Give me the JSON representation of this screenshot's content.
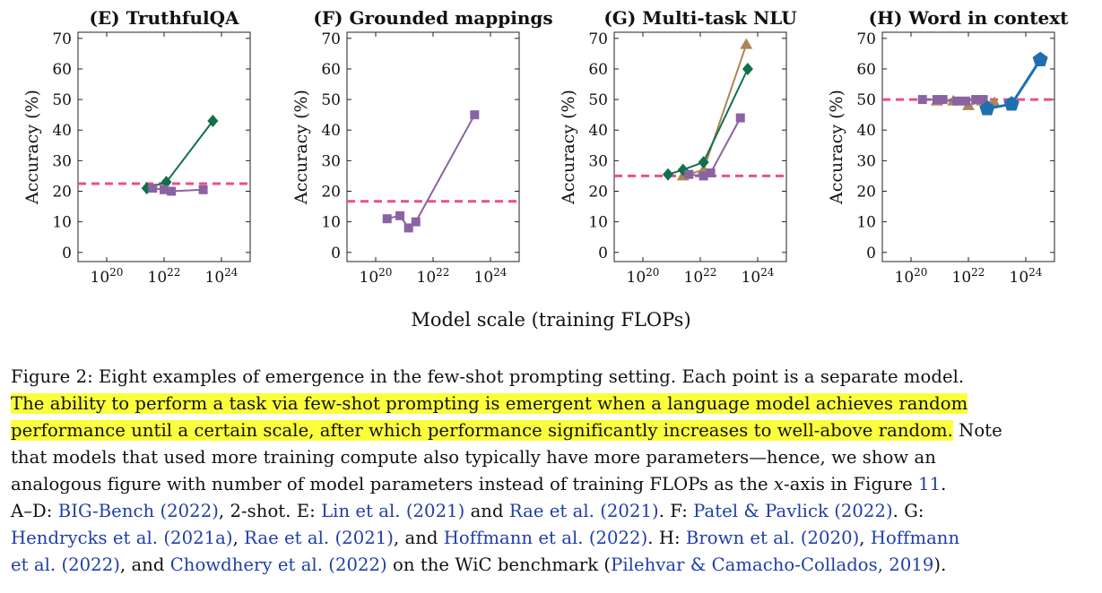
{
  "figure": {
    "xlabel_shared": "Model scale (training FLOPs)",
    "random_line_color": "#e8508c",
    "series_colors": {
      "green": "#11704a",
      "purple": "#8a63a3",
      "brown": "#ad8559",
      "blue": "#1f6fb0"
    }
  },
  "chart_data": [
    {
      "type": "scatter",
      "title": "(E) TruthfulQA",
      "ylabel": "Accuracy (%)",
      "x_scale": "log",
      "xlim": [
        1e+19,
        1e+25
      ],
      "ylim": [
        -3,
        72
      ],
      "yticks": [
        0,
        10,
        20,
        30,
        40,
        50,
        60,
        70
      ],
      "xticks": [
        1e+20,
        1e+22,
        1e+24
      ],
      "xtick_labels": [
        "10^20",
        "10^22",
        "10^24"
      ],
      "random_baseline": 22.5,
      "series": [
        {
          "color": "#11704a",
          "marker": "diamond",
          "x": [
            2.5e+21,
            1.2e+22,
            5e+23
          ],
          "y": [
            21,
            23,
            43
          ]
        },
        {
          "color": "#8a63a3",
          "marker": "square",
          "x": [
            4e+21,
            1e+22,
            1.8e+22,
            2.3e+23
          ],
          "y": [
            21,
            20.5,
            20,
            20.5
          ]
        }
      ]
    },
    {
      "type": "scatter",
      "title": "(F) Grounded mappings",
      "ylabel": "Accuracy (%)",
      "x_scale": "log",
      "xlim": [
        1e+19,
        1e+25
      ],
      "ylim": [
        -3,
        72
      ],
      "yticks": [
        0,
        10,
        20,
        30,
        40,
        50,
        60,
        70
      ],
      "xticks": [
        1e+20,
        1e+22,
        1e+24
      ],
      "xtick_labels": [
        "10^20",
        "10^22",
        "10^24"
      ],
      "random_baseline": 16.7,
      "series": [
        {
          "color": "#8a63a3",
          "marker": "square",
          "x": [
            2.5e+20,
            7e+20,
            1.4e+21,
            2.5e+21,
            2.8e+23
          ],
          "y": [
            11,
            12,
            8,
            10,
            45
          ]
        }
      ]
    },
    {
      "type": "scatter",
      "title": "(G) Multi-task NLU",
      "ylabel": "Accuracy (%)",
      "x_scale": "log",
      "xlim": [
        1e+19,
        1e+25
      ],
      "ylim": [
        -3,
        72
      ],
      "yticks": [
        0,
        10,
        20,
        30,
        40,
        50,
        60,
        70
      ],
      "xticks": [
        1e+20,
        1e+22,
        1e+24
      ],
      "xtick_labels": [
        "10^20",
        "10^22",
        "10^24"
      ],
      "random_baseline": 25,
      "series": [
        {
          "color": "#ad8559",
          "marker": "triangle",
          "x": [
            2.5e+21,
            1.3e+22,
            4e+23
          ],
          "y": [
            25,
            27,
            68
          ]
        },
        {
          "color": "#11704a",
          "marker": "diamond",
          "x": [
            7.5e+20,
            2.5e+21,
            1.3e+22,
            4.5e+23
          ],
          "y": [
            25.5,
            27,
            29.5,
            60
          ]
        },
        {
          "color": "#8a63a3",
          "marker": "square",
          "x": [
            4e+21,
            1.3e+22,
            2.3e+22,
            2.5e+23
          ],
          "y": [
            25.5,
            25,
            26,
            44
          ]
        }
      ]
    },
    {
      "type": "scatter",
      "title": "(H) Word in context",
      "ylabel": "Accuracy (%)",
      "x_scale": "log",
      "xlim": [
        1e+19,
        1e+25
      ],
      "ylim": [
        -3,
        72
      ],
      "yticks": [
        0,
        10,
        20,
        30,
        40,
        50,
        60,
        70
      ],
      "xticks": [
        1e+20,
        1e+22,
        1e+24
      ],
      "xtick_labels": [
        "10^20",
        "10^22",
        "10^24"
      ],
      "random_baseline": 50,
      "series": [
        {
          "color": "#ad8559",
          "marker": "triangle",
          "x": [
            8e+20,
            3e+21,
            1e+22,
            3e+22,
            8e+22
          ],
          "y": [
            49.5,
            49.5,
            48,
            49.5,
            49
          ]
        },
        {
          "color": "#8a63a3",
          "marker": "square",
          "x": [
            2.5e+20,
            8e+20,
            1.3e+21,
            4e+21,
            8e+21,
            1.8e+22,
            3.3e+22
          ],
          "y": [
            50,
            50,
            50,
            49.5,
            49.5,
            50,
            50
          ]
        },
        {
          "color": "#1f6fb0",
          "marker": "pentagon",
          "x": [
            4.5e+22,
            3.2e+23,
            3.2e+24
          ],
          "y": [
            47,
            48.5,
            63
          ]
        }
      ]
    }
  ],
  "caption": {
    "l1": "Figure 2: Eight examples of emergence in the few-shot prompting setting. Each point is a separate model.",
    "l2": "The ability to perform a task via few-shot prompting is emergent when a language model achieves random",
    "l3_hl": "performance until a certain scale, after which performance significantly increases to well-above random.",
    "l3_rest": " Note",
    "l4": "that models that used more training compute also typically have more parameters—hence, we show an",
    "l5_a": "analogous figure with number of model parameters instead of training FLOPs as the ",
    "l5_x": "x",
    "l5_b": "-axis in Figure ",
    "l5_ref": "11",
    "l5_c": ".",
    "l6_a": "A–D: ",
    "l6_ref1": "BIG-Bench (2022)",
    "l6_b": ", 2-shot. E: ",
    "l6_ref2": "Lin et al. (2021)",
    "l6_c": " and ",
    "l6_ref3": "Rae et al. (2021)",
    "l6_d": ". F: ",
    "l6_ref4": "Patel & Pavlick (2022)",
    "l6_e": ". G:",
    "l7_ref1": "Hendrycks et al. (2021a)",
    "l7_a": ", ",
    "l7_ref2": "Rae et al. (2021)",
    "l7_b": ", and ",
    "l7_ref3": "Hoffmann et al. (2022)",
    "l7_c": ". H: ",
    "l7_ref4": "Brown et al. (2020)",
    "l7_d": ", ",
    "l7_ref5": "Hoffmann",
    "l8_ref1": "et al. (2022)",
    "l8_a": ", and ",
    "l8_ref2": "Chowdhery et al. (2022)",
    "l8_b": " on the WiC benchmark (",
    "l8_ref3": "Pilehvar & Camacho-Collados, 2019",
    "l8_c": ")."
  }
}
